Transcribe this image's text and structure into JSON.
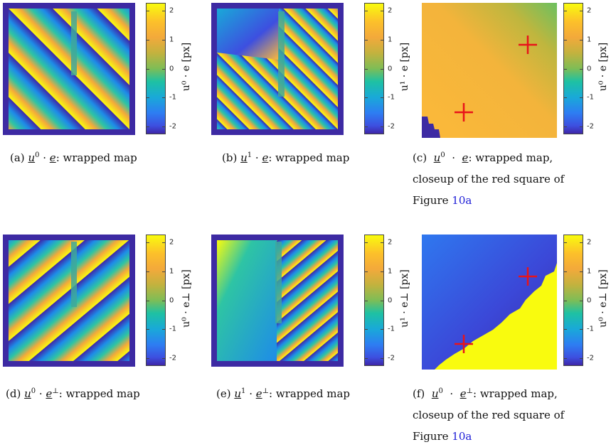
{
  "colorbar": {
    "ticks": [
      "2",
      "1",
      "0",
      "-1",
      "-2"
    ]
  },
  "panels": [
    {
      "id": "a",
      "cb_label": "u⁰ · e [px]",
      "caption_prefix": "(a)",
      "caption_sup": "0",
      "caption_vec": "e",
      "caption_rest": ": wrapped map",
      "caption_extra": ""
    },
    {
      "id": "b",
      "cb_label": "u¹ · e [px]",
      "caption_prefix": "(b)",
      "caption_sup": "1",
      "caption_vec": "e",
      "caption_rest": ": wrapped map",
      "caption_extra": ""
    },
    {
      "id": "c",
      "cb_label": "u⁰ · e [px]",
      "caption_prefix": "(c)",
      "caption_sup": "0",
      "caption_vec": "e",
      "caption_rest": ": wrapped map,",
      "caption_extra": "closeup of the red square of",
      "caption_fig": "Figure",
      "caption_ref": "10a"
    },
    {
      "id": "d",
      "cb_label": "u⁰ · e⊥ [px]",
      "caption_prefix": "(d)",
      "caption_sup": "0",
      "caption_vec": "e",
      "caption_perp": "⊥",
      "caption_rest": ": wrapped map",
      "caption_extra": ""
    },
    {
      "id": "e",
      "cb_label": "u¹ · e⊥ [px]",
      "caption_prefix": "(e)",
      "caption_sup": "1",
      "caption_vec": "e",
      "caption_perp": "⊥",
      "caption_rest": ": wrapped map",
      "caption_extra": ""
    },
    {
      "id": "f",
      "cb_label": "u⁰ · e⊥ [px]",
      "caption_prefix": "(f)",
      "caption_sup": "0",
      "caption_vec": "e",
      "caption_perp": "⊥",
      "caption_rest": ": wrapped map,",
      "caption_extra": "closeup of the red square of",
      "caption_fig": "Figure",
      "caption_ref": "10a"
    }
  ],
  "colors": {
    "border": "#3d2aa3",
    "yellow": "#f9fb0e",
    "orange": "#fcb93a",
    "cross": "#e8141a"
  }
}
